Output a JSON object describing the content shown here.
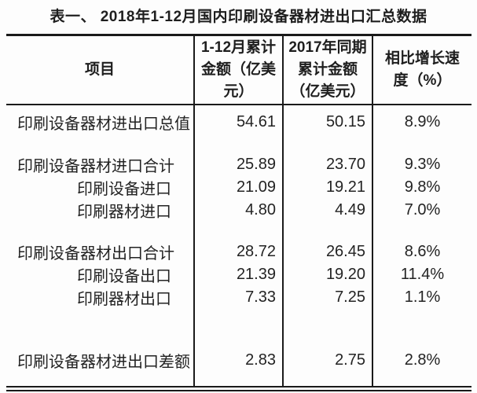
{
  "title": "表一、 2018年1-12月国内印刷设备器材进出口汇总数据",
  "table": {
    "headers": [
      "项目",
      "1-12月累计金额（亿美元）",
      "2017年同期累计金额（亿美元）",
      "相比增长速度（%）"
    ],
    "rows": [
      {
        "label": "印刷设备器材进出口总值",
        "current": "54.61",
        "previous": "50.15",
        "growth": "8.9%",
        "indent": false
      },
      {
        "label": "印刷设备器材进口合计",
        "current": "25.89",
        "previous": "23.70",
        "growth": "9.3%",
        "indent": false
      },
      {
        "label": "印刷设备进口",
        "current": "21.09",
        "previous": "19.21",
        "growth": "9.8%",
        "indent": true
      },
      {
        "label": "印刷器材进口",
        "current": "4.80",
        "previous": "4.49",
        "growth": "7.0%",
        "indent": true
      },
      {
        "label": "印刷设备器材出口合计",
        "current": "28.72",
        "previous": "26.45",
        "growth": "8.6%",
        "indent": false
      },
      {
        "label": "印刷设备出口",
        "current": "21.39",
        "previous": "19.20",
        "growth": "11.4%",
        "indent": true
      },
      {
        "label": "印刷器材出口",
        "current": "7.33",
        "previous": "7.25",
        "growth": "1.1%",
        "indent": true
      },
      {
        "label": "印刷设备器材进出口差额",
        "current": "2.83",
        "previous": "2.75",
        "growth": "2.8%",
        "indent": false
      }
    ],
    "units_note": "亿美元"
  }
}
